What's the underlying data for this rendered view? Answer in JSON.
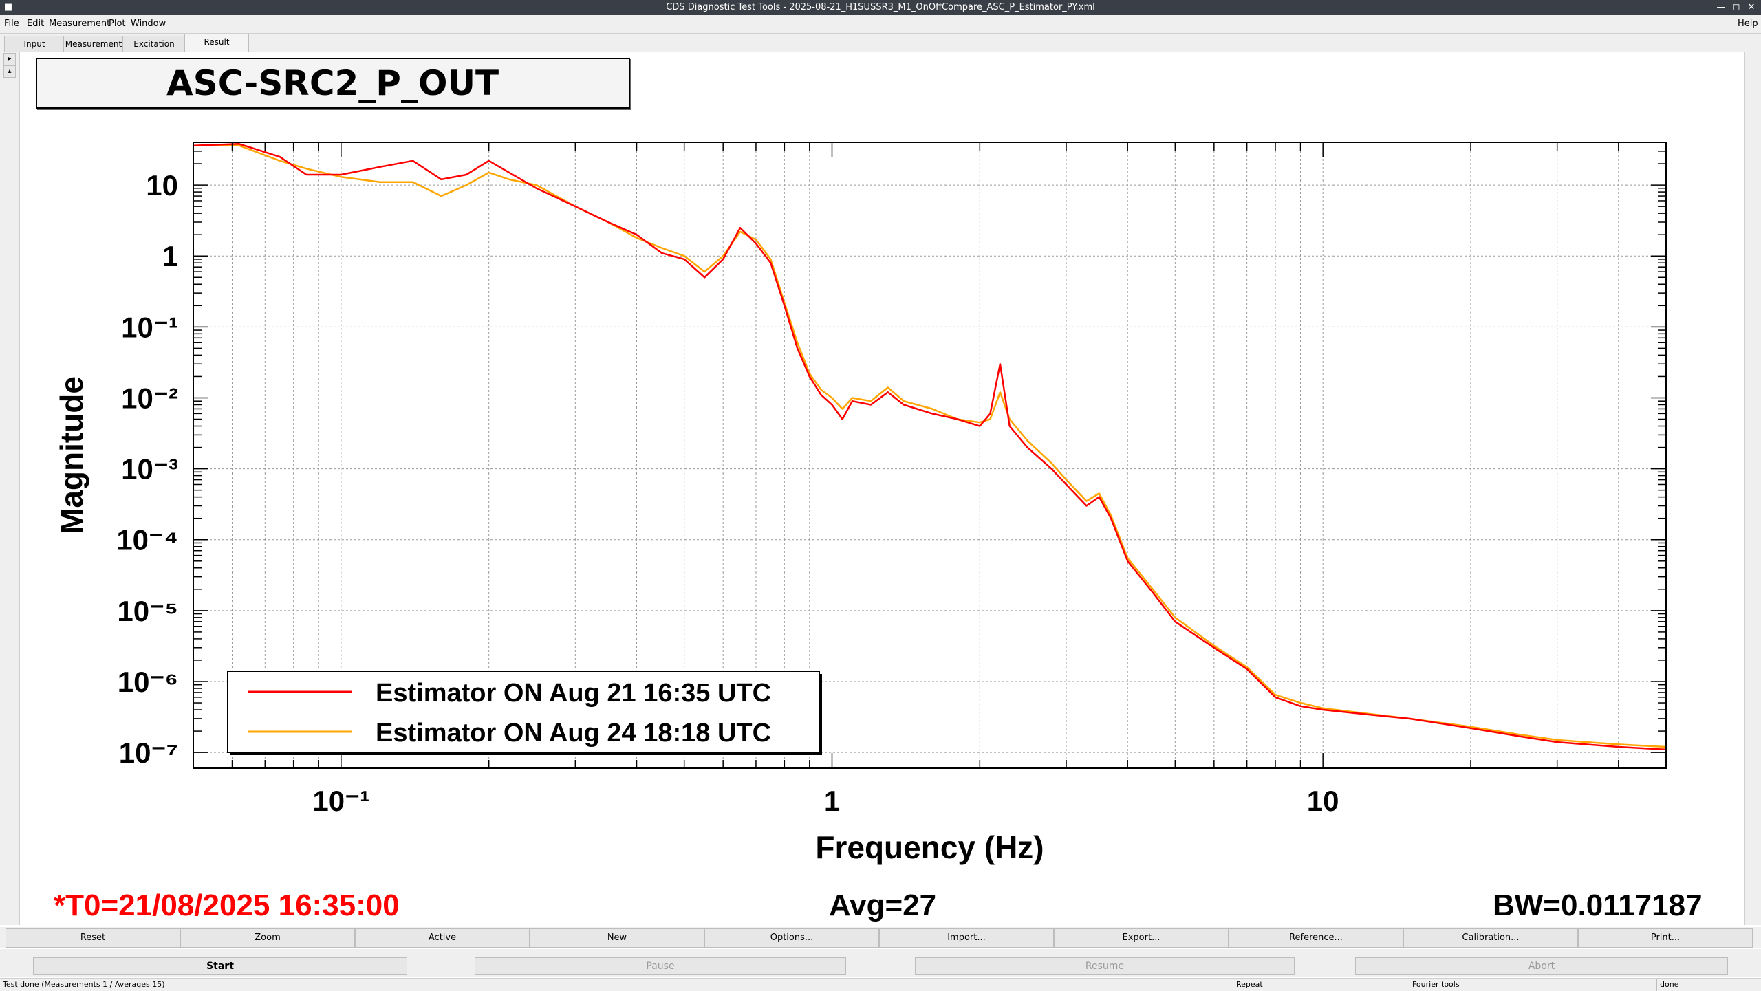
{
  "window": {
    "title": "CDS Diagnostic Test Tools - 2025-08-21_H1SUSSR3_M1_OnOffCompare_ASC_P_Estimator_PY.xml"
  },
  "menu": {
    "items": [
      "File",
      "Edit",
      "Measurement",
      "Plot",
      "Window"
    ],
    "help": "Help"
  },
  "tabs": [
    "Input",
    "Measurement",
    "Excitation",
    "Result"
  ],
  "active_tab": "Result",
  "plot": {
    "title": "ASC-SRC2_P_OUT"
  },
  "chart_data": {
    "type": "line",
    "title": "ASC-SRC2_P_OUT",
    "xlabel": "Frequency (Hz)",
    "ylabel": "Magnitude",
    "xscale": "log",
    "yscale": "log",
    "xlim": [
      0.05,
      50
    ],
    "ylim": [
      6e-08,
      40
    ],
    "grid": true,
    "legend_position": "bottom-left",
    "x_ticks": [
      "10⁻¹",
      "1",
      "10"
    ],
    "y_ticks": [
      "10",
      "1",
      "10⁻¹",
      "10⁻²",
      "10⁻³",
      "10⁻⁴",
      "10⁻⁵",
      "10⁻⁶",
      "10⁻⁷"
    ],
    "series": [
      {
        "name": "Estimator ON Aug 21 16:35 UTC",
        "color": "#ff0000",
        "points": [
          [
            0.05,
            36
          ],
          [
            0.062,
            38
          ],
          [
            0.075,
            25
          ],
          [
            0.085,
            14
          ],
          [
            0.1,
            14
          ],
          [
            0.12,
            18
          ],
          [
            0.14,
            22
          ],
          [
            0.16,
            12
          ],
          [
            0.18,
            14
          ],
          [
            0.2,
            22
          ],
          [
            0.22,
            15
          ],
          [
            0.25,
            9
          ],
          [
            0.3,
            5
          ],
          [
            0.35,
            3
          ],
          [
            0.4,
            2
          ],
          [
            0.45,
            1.1
          ],
          [
            0.5,
            0.9
          ],
          [
            0.55,
            0.5
          ],
          [
            0.6,
            0.9
          ],
          [
            0.65,
            2.5
          ],
          [
            0.7,
            1.5
          ],
          [
            0.75,
            0.8
          ],
          [
            0.8,
            0.2
          ],
          [
            0.85,
            0.05
          ],
          [
            0.9,
            0.02
          ],
          [
            0.95,
            0.011
          ],
          [
            1.0,
            0.008
          ],
          [
            1.05,
            0.005
          ],
          [
            1.1,
            0.009
          ],
          [
            1.2,
            0.008
          ],
          [
            1.3,
            0.012
          ],
          [
            1.4,
            0.008
          ],
          [
            1.6,
            0.006
          ],
          [
            1.8,
            0.005
          ],
          [
            2.0,
            0.004
          ],
          [
            2.1,
            0.006
          ],
          [
            2.2,
            0.03
          ],
          [
            2.3,
            0.004
          ],
          [
            2.5,
            0.002
          ],
          [
            2.8,
            0.001
          ],
          [
            3.0,
            0.0006
          ],
          [
            3.3,
            0.0003
          ],
          [
            3.5,
            0.0004
          ],
          [
            3.7,
            0.0002
          ],
          [
            4.0,
            5e-05
          ],
          [
            4.5,
            1.8e-05
          ],
          [
            5.0,
            7e-06
          ],
          [
            6.0,
            3e-06
          ],
          [
            7.0,
            1.5e-06
          ],
          [
            8.0,
            6e-07
          ],
          [
            9.0,
            4.5e-07
          ],
          [
            10.0,
            4e-07
          ],
          [
            12.0,
            3.5e-07
          ],
          [
            15.0,
            3e-07
          ],
          [
            20.0,
            2.2e-07
          ],
          [
            25.0,
            1.7e-07
          ],
          [
            30.0,
            1.4e-07
          ],
          [
            40.0,
            1.2e-07
          ],
          [
            50.0,
            1.1e-07
          ]
        ]
      },
      {
        "name": "Estimator ON Aug 24 18:18 UTC",
        "color": "#ffa500",
        "points": [
          [
            0.05,
            36
          ],
          [
            0.062,
            36
          ],
          [
            0.075,
            22
          ],
          [
            0.085,
            17
          ],
          [
            0.1,
            13
          ],
          [
            0.12,
            11
          ],
          [
            0.14,
            11
          ],
          [
            0.16,
            7
          ],
          [
            0.18,
            10
          ],
          [
            0.2,
            15
          ],
          [
            0.22,
            12
          ],
          [
            0.25,
            10
          ],
          [
            0.3,
            5
          ],
          [
            0.35,
            3
          ],
          [
            0.4,
            1.8
          ],
          [
            0.45,
            1.3
          ],
          [
            0.5,
            1.0
          ],
          [
            0.55,
            0.6
          ],
          [
            0.6,
            1.0
          ],
          [
            0.65,
            2.2
          ],
          [
            0.7,
            1.7
          ],
          [
            0.75,
            0.9
          ],
          [
            0.8,
            0.22
          ],
          [
            0.85,
            0.06
          ],
          [
            0.9,
            0.022
          ],
          [
            0.95,
            0.013
          ],
          [
            1.0,
            0.01
          ],
          [
            1.05,
            0.007
          ],
          [
            1.1,
            0.01
          ],
          [
            1.2,
            0.009
          ],
          [
            1.3,
            0.014
          ],
          [
            1.4,
            0.009
          ],
          [
            1.6,
            0.007
          ],
          [
            1.8,
            0.005
          ],
          [
            2.0,
            0.0045
          ],
          [
            2.1,
            0.005
          ],
          [
            2.2,
            0.012
          ],
          [
            2.3,
            0.005
          ],
          [
            2.5,
            0.0025
          ],
          [
            2.8,
            0.0012
          ],
          [
            3.0,
            0.0007
          ],
          [
            3.3,
            0.00035
          ],
          [
            3.5,
            0.00045
          ],
          [
            3.7,
            0.00022
          ],
          [
            4.0,
            5.5e-05
          ],
          [
            4.5,
            2e-05
          ],
          [
            5.0,
            8e-06
          ],
          [
            6.0,
            3.2e-06
          ],
          [
            7.0,
            1.6e-06
          ],
          [
            8.0,
            6.5e-07
          ],
          [
            9.0,
            5e-07
          ],
          [
            10.0,
            4.2e-07
          ],
          [
            12.0,
            3.6e-07
          ],
          [
            15.0,
            3e-07
          ],
          [
            20.0,
            2.3e-07
          ],
          [
            25.0,
            1.8e-07
          ],
          [
            30.0,
            1.5e-07
          ],
          [
            40.0,
            1.3e-07
          ],
          [
            50.0,
            1.2e-07
          ]
        ]
      }
    ]
  },
  "status": {
    "t0": "*T0=21/08/2025 16:35:00",
    "avg": "Avg=27",
    "bw": "BW=0.0117187",
    "t0_color": "#ff0000"
  },
  "toolbar": [
    "Reset",
    "Zoom",
    "Active",
    "New",
    "Options...",
    "Import...",
    "Export...",
    "Reference...",
    "Calibration...",
    "Print..."
  ],
  "controls": {
    "start": "Start",
    "pause": "Pause",
    "resume": "Resume",
    "abort": "Abort"
  },
  "statusbar": {
    "message": "Test done (Measurements 1 / Averages 15)",
    "repeat": "Repeat",
    "tool": "Fourier tools",
    "state": "done"
  }
}
